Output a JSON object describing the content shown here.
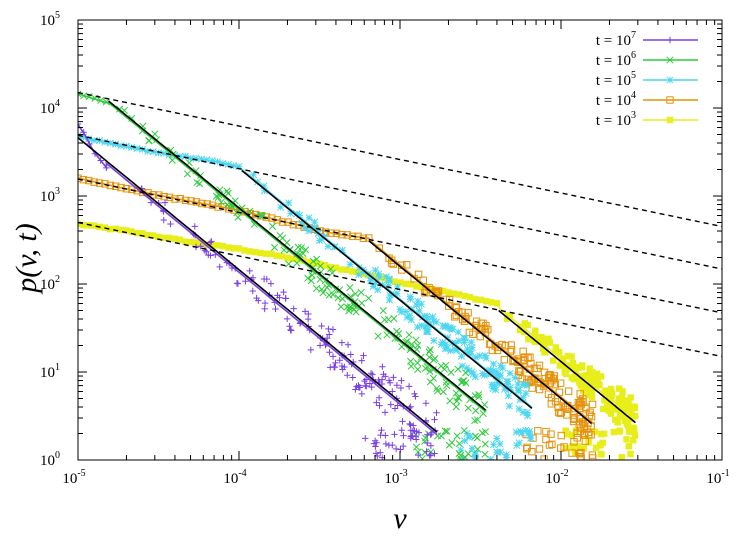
{
  "chart_data": {
    "type": "scatter",
    "title": "",
    "xlabel": "v",
    "ylabel": "p(v, t)",
    "xscale": "log",
    "yscale": "log",
    "xlim": [
      1e-05,
      0.1
    ],
    "ylim": [
      1,
      100000
    ],
    "grid": false,
    "legend_position": "top-right",
    "x_ticks": [
      {
        "base": "10",
        "exp": "-5"
      },
      {
        "base": "10",
        "exp": "-4"
      },
      {
        "base": "10",
        "exp": "-3"
      },
      {
        "base": "10",
        "exp": "-2"
      },
      {
        "base": "10",
        "exp": "-1"
      }
    ],
    "y_ticks": [
      {
        "base": "10",
        "exp": "0"
      },
      {
        "base": "10",
        "exp": "1"
      },
      {
        "base": "10",
        "exp": "2"
      },
      {
        "base": "10",
        "exp": "3"
      },
      {
        "base": "10",
        "exp": "4"
      },
      {
        "base": "10",
        "exp": "5"
      }
    ],
    "series": [
      {
        "name_prefix": "t = 10",
        "name_exp": "7",
        "color": "#7b3fe4",
        "marker": "plus",
        "plateau": [
          [
            1e-05,
            6500
          ],
          [
            1.1e-05,
            5000
          ],
          [
            1.25e-05,
            3200
          ],
          [
            1.5e-05,
            2100
          ]
        ],
        "powerlaw": {
          "xmin": 1.5e-05,
          "xmax": 0.0017,
          "x0": 1e-05,
          "y0": 4300,
          "slope": -1.5
        },
        "scatter_fraction": 0.35
      },
      {
        "name_prefix": "t = 10",
        "name_exp": "6",
        "color": "#2ecc3b",
        "marker": "cross",
        "plateau": [
          [
            1e-05,
            14500
          ],
          [
            1.25e-05,
            12800
          ],
          [
            1.5e-05,
            11500
          ]
        ],
        "powerlaw": {
          "xmin": 1.55e-05,
          "xmax": 0.0034,
          "x0": 1.55e-05,
          "y0": 11500,
          "slope": -1.5
        },
        "scatter_fraction": 0.3
      },
      {
        "name_prefix": "t = 10",
        "name_exp": "5",
        "color": "#4dd6f0",
        "marker": "star",
        "plateau": [
          [
            1e-05,
            4800
          ],
          [
            1.5e-05,
            4000
          ],
          [
            2.5e-05,
            3350
          ],
          [
            4e-05,
            2900
          ],
          [
            6e-05,
            2600
          ],
          [
            8e-05,
            2350
          ],
          [
            0.0001,
            2150
          ]
        ],
        "powerlaw": {
          "xmin": 0.000108,
          "xmax": 0.0066,
          "x0": 0.000108,
          "y0": 1900,
          "slope": -1.5
        },
        "scatter_fraction": 0.25
      },
      {
        "name_prefix": "t = 10",
        "name_exp": "4",
        "color": "#e6920a",
        "marker": "square",
        "plateau": [
          [
            1e-05,
            1600
          ],
          [
            2e-05,
            1200
          ],
          [
            5e-05,
            870
          ],
          [
            0.0001,
            690
          ],
          [
            0.0002,
            500
          ],
          [
            0.0004,
            370
          ],
          [
            0.00064,
            330
          ]
        ],
        "powerlaw": {
          "xmin": 0.00067,
          "xmax": 0.016,
          "x0": 0.00067,
          "y0": 300,
          "slope": -1.5
        },
        "scatter_fraction": 0.25
      },
      {
        "name_prefix": "t = 10",
        "name_exp": "3",
        "color": "#e8ee1a",
        "marker": "filled-square",
        "plateau": [
          [
            1e-05,
            480
          ],
          [
            2e-05,
            400
          ],
          [
            5e-05,
            300
          ],
          [
            0.0001,
            250
          ],
          [
            0.0002,
            200
          ],
          [
            0.0005,
            140
          ],
          [
            0.001,
            105
          ],
          [
            0.002,
            80
          ],
          [
            0.004,
            60
          ]
        ],
        "powerlaw": {
          "xmin": 0.0042,
          "xmax": 0.029,
          "x0": 0.0042,
          "y0": 52,
          "slope": -1.5
        },
        "scatter_fraction": 0.25
      }
    ],
    "fit_solid": [
      {
        "x": [
          1e-05,
          0.0017
        ],
        "y0": 4600,
        "slope": -1.5
      },
      {
        "x": [
          1.55e-05,
          0.0034
        ],
        "y0": 12000,
        "x0": 1.55e-05,
        "slope": -1.5
      },
      {
        "x": [
          0.000104,
          0.0066
        ],
        "y0": 1950,
        "x0": 0.000104,
        "slope": -1.5
      },
      {
        "x": [
          0.00064,
          0.0155
        ],
        "y0": 310,
        "x0": 0.00064,
        "slope": -1.5
      },
      {
        "x": [
          0.0041,
          0.029
        ],
        "y0": 50,
        "x0": 0.0041,
        "slope": -1.5
      }
    ],
    "fit_dashed": [
      {
        "x": [
          1e-05,
          0.1
        ],
        "y": [
          15000,
          450
        ]
      },
      {
        "x": [
          1e-05,
          0.1
        ],
        "y": [
          4900,
          148
        ]
      },
      {
        "x": [
          1e-05,
          0.1
        ],
        "y": [
          1560,
          47
        ]
      },
      {
        "x": [
          1e-05,
          0.1
        ],
        "y": [
          500,
          15
        ]
      }
    ]
  }
}
